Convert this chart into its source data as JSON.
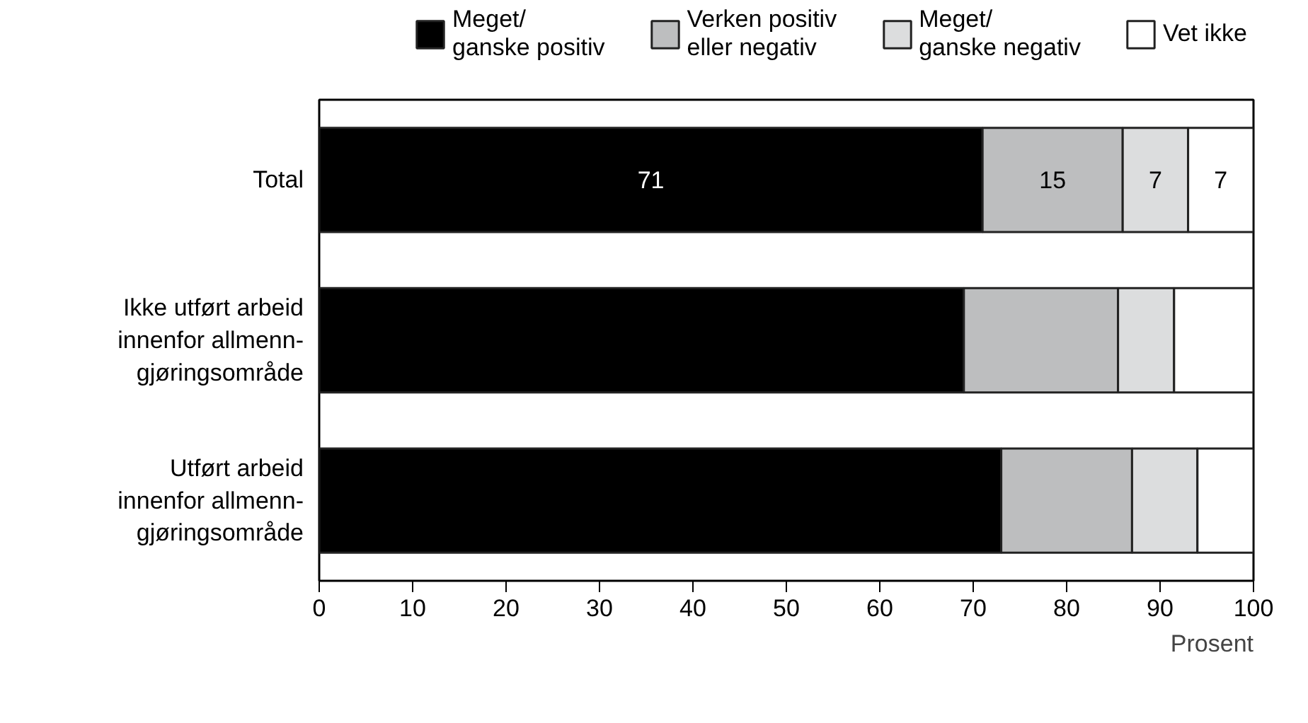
{
  "chart_data": {
    "type": "bar",
    "orientation": "horizontal",
    "stacked": true,
    "xlabel": "Prosent",
    "categories": [
      "Total",
      "Ikke utført arbeid\ninnenfor allmenn-\ngjøringsområde",
      "Utført arbeid\ninnenfor allmenn-\ngjøringsområde"
    ],
    "series": [
      {
        "name": "Meget/\nganske positiv",
        "color": "#000000",
        "values": [
          71,
          69,
          73
        ],
        "value_labels": [
          "71",
          null,
          null
        ]
      },
      {
        "name": "Verken positiv\neller negativ",
        "color": "#bdbebf",
        "values": [
          15,
          16.5,
          14
        ],
        "value_labels": [
          "15",
          null,
          null
        ]
      },
      {
        "name": "Meget/\nganske negativ",
        "color": "#dcddde",
        "values": [
          7,
          6,
          7
        ],
        "value_labels": [
          "7",
          null,
          null
        ]
      },
      {
        "name": "Vet ikke",
        "color": "#ffffff",
        "values": [
          7,
          8.5,
          6
        ],
        "value_labels": [
          "7",
          null,
          null
        ]
      }
    ],
    "xlim": [
      0,
      100
    ],
    "xticks": [
      0,
      10,
      20,
      30,
      40,
      50,
      60,
      70,
      80,
      90,
      100
    ],
    "grid": false,
    "legend": "top"
  }
}
